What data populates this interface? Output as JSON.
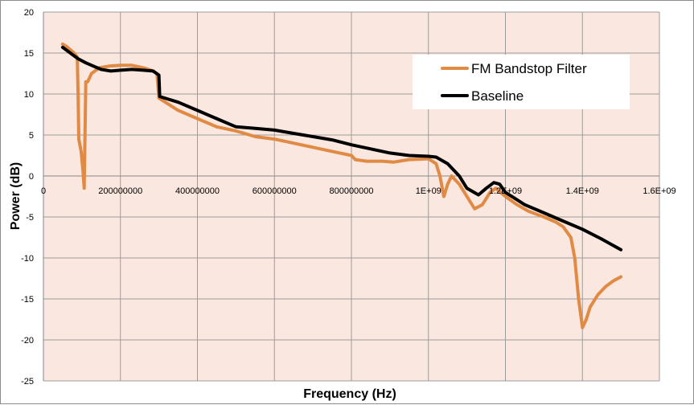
{
  "chart_data": {
    "type": "line",
    "title": "",
    "xlabel": "Frequency (Hz)",
    "ylabel": "Power (dB)",
    "xlim": [
      0,
      1600000000
    ],
    "ylim": [
      -25,
      20
    ],
    "x_ticks": [
      {
        "value": 200000000,
        "label": "200000000"
      },
      {
        "value": 400000000,
        "label": "400000000"
      },
      {
        "value": 600000000,
        "label": "600000000"
      },
      {
        "value": 800000000,
        "label": "800000000"
      },
      {
        "value": 1000000000,
        "label": "1E+09"
      },
      {
        "value": 1200000000,
        "label": "1.2E+09"
      },
      {
        "value": 1400000000,
        "label": "1.4E+09"
      },
      {
        "value": 1600000000,
        "label": "1.6E+09"
      }
    ],
    "y_ticks": [
      {
        "value": 20,
        "label": "20"
      },
      {
        "value": 15,
        "label": "15"
      },
      {
        "value": 10,
        "label": "10"
      },
      {
        "value": 5,
        "label": "5"
      },
      {
        "value": 0,
        "label": "0"
      },
      {
        "value": -5,
        "label": "-5"
      },
      {
        "value": -10,
        "label": "-10"
      },
      {
        "value": -15,
        "label": "-15"
      },
      {
        "value": -20,
        "label": "-20"
      },
      {
        "value": -25,
        "label": "-25"
      }
    ],
    "grid": true,
    "legend_position": "top-right",
    "colors": {
      "plot_background": "#fae7e0",
      "grid": "#9c9c9c",
      "fm": "#e08a44",
      "baseline": "#000000"
    },
    "series": [
      {
        "name": "FM Bandstop Filter",
        "color": "#e08a44",
        "points": [
          [
            50000000,
            16.1
          ],
          [
            60000000,
            15.8
          ],
          [
            80000000,
            15.0
          ],
          [
            88000000,
            14.5
          ],
          [
            90000000,
            10.0
          ],
          [
            92000000,
            4.5
          ],
          [
            98000000,
            3.0
          ],
          [
            103000000,
            0.5
          ],
          [
            106000000,
            -1.5
          ],
          [
            108000000,
            5.0
          ],
          [
            110000000,
            11.5
          ],
          [
            115000000,
            11.5
          ],
          [
            125000000,
            12.5
          ],
          [
            145000000,
            13.2
          ],
          [
            170000000,
            13.4
          ],
          [
            200000000,
            13.5
          ],
          [
            230000000,
            13.5
          ],
          [
            260000000,
            13.2
          ],
          [
            280000000,
            12.9
          ],
          [
            295000000,
            12.5
          ],
          [
            300000000,
            9.5
          ],
          [
            350000000,
            8.0
          ],
          [
            400000000,
            7.0
          ],
          [
            450000000,
            6.0
          ],
          [
            500000000,
            5.5
          ],
          [
            550000000,
            4.8
          ],
          [
            600000000,
            4.5
          ],
          [
            650000000,
            4.0
          ],
          [
            700000000,
            3.5
          ],
          [
            750000000,
            3.0
          ],
          [
            800000000,
            2.5
          ],
          [
            810000000,
            2.0
          ],
          [
            840000000,
            1.8
          ],
          [
            880000000,
            1.8
          ],
          [
            910000000,
            1.7
          ],
          [
            950000000,
            2.0
          ],
          [
            1000000000,
            2.1
          ],
          [
            1020000000,
            1.5
          ],
          [
            1030000000,
            0.0
          ],
          [
            1040000000,
            -2.5
          ],
          [
            1050000000,
            -1.0
          ],
          [
            1060000000,
            0.0
          ],
          [
            1080000000,
            -1.0
          ],
          [
            1100000000,
            -2.5
          ],
          [
            1120000000,
            -4.0
          ],
          [
            1140000000,
            -3.5
          ],
          [
            1160000000,
            -2.0
          ],
          [
            1175000000,
            -1.5
          ],
          [
            1200000000,
            -2.5
          ],
          [
            1230000000,
            -3.5
          ],
          [
            1260000000,
            -4.3
          ],
          [
            1300000000,
            -5.0
          ],
          [
            1330000000,
            -5.6
          ],
          [
            1350000000,
            -6.2
          ],
          [
            1370000000,
            -7.5
          ],
          [
            1380000000,
            -10.0
          ],
          [
            1390000000,
            -15.0
          ],
          [
            1400000000,
            -18.5
          ],
          [
            1410000000,
            -17.5
          ],
          [
            1420000000,
            -16.0
          ],
          [
            1440000000,
            -14.5
          ],
          [
            1460000000,
            -13.5
          ],
          [
            1480000000,
            -12.8
          ],
          [
            1500000000,
            -12.3
          ]
        ]
      },
      {
        "name": "Baseline",
        "color": "#000000",
        "points": [
          [
            50000000,
            15.7
          ],
          [
            70000000,
            15.0
          ],
          [
            90000000,
            14.3
          ],
          [
            110000000,
            13.8
          ],
          [
            130000000,
            13.4
          ],
          [
            150000000,
            13.0
          ],
          [
            175000000,
            12.8
          ],
          [
            200000000,
            12.9
          ],
          [
            230000000,
            13.0
          ],
          [
            260000000,
            12.9
          ],
          [
            285000000,
            12.8
          ],
          [
            300000000,
            12.3
          ],
          [
            302000000,
            9.7
          ],
          [
            350000000,
            9.0
          ],
          [
            400000000,
            8.0
          ],
          [
            450000000,
            7.0
          ],
          [
            500000000,
            6.0
          ],
          [
            550000000,
            5.8
          ],
          [
            600000000,
            5.6
          ],
          [
            650000000,
            5.2
          ],
          [
            700000000,
            4.8
          ],
          [
            750000000,
            4.4
          ],
          [
            800000000,
            3.8
          ],
          [
            850000000,
            3.3
          ],
          [
            900000000,
            2.8
          ],
          [
            950000000,
            2.5
          ],
          [
            1000000000,
            2.4
          ],
          [
            1020000000,
            2.3
          ],
          [
            1050000000,
            1.5
          ],
          [
            1080000000,
            0.0
          ],
          [
            1100000000,
            -1.5
          ],
          [
            1130000000,
            -2.3
          ],
          [
            1150000000,
            -1.5
          ],
          [
            1170000000,
            -0.8
          ],
          [
            1185000000,
            -1.0
          ],
          [
            1200000000,
            -2.0
          ],
          [
            1250000000,
            -3.5
          ],
          [
            1300000000,
            -4.5
          ],
          [
            1350000000,
            -5.5
          ],
          [
            1400000000,
            -6.5
          ],
          [
            1450000000,
            -7.7
          ],
          [
            1500000000,
            -9.0
          ]
        ]
      }
    ]
  }
}
